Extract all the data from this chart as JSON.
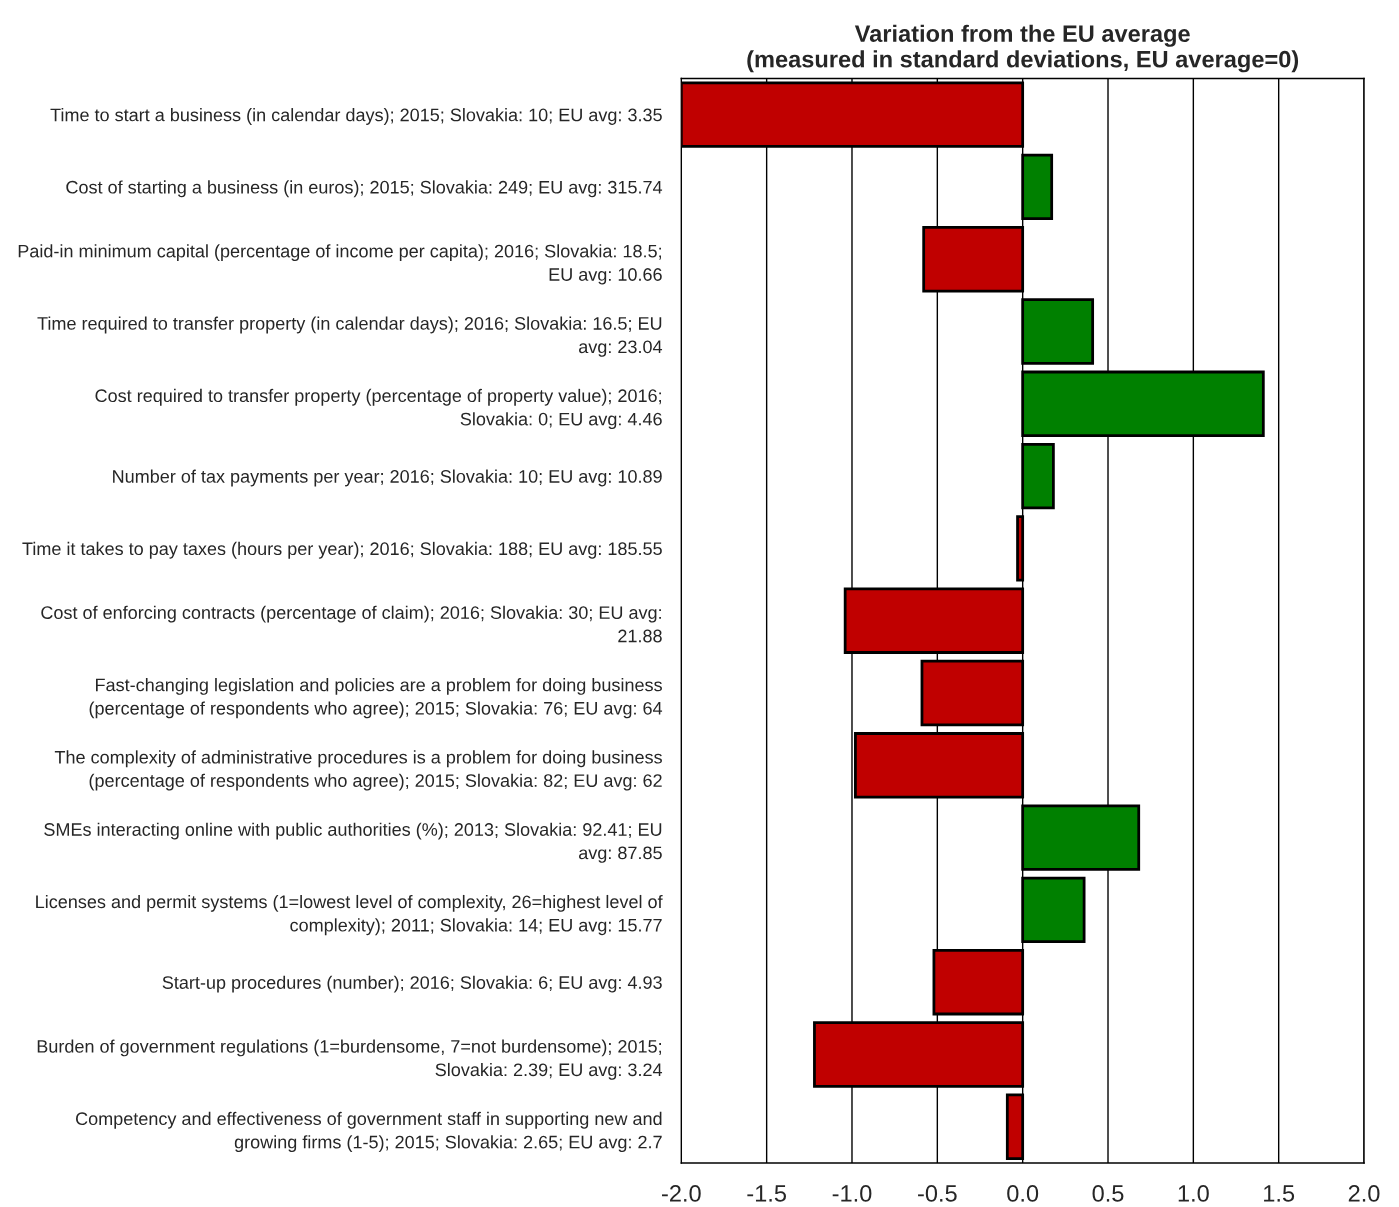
{
  "chart_data": {
    "type": "bar",
    "orientation": "horizontal",
    "title": "Variation from the EU average\n(measured in standard deviations, EU average=0)",
    "categories": [
      "Time to start a business (in calendar days); 2015; Slovakia: 10; EU avg: 3.35",
      "Cost of starting a business (in euros); 2015; Slovakia: 249; EU avg: 315.74",
      "Paid-in minimum capital (percentage of income per capita); 2016; Slovakia: 18.5;\nEU avg: 10.66",
      "Time required to transfer property (in calendar days); 2016; Slovakia: 16.5; EU\navg: 23.04",
      "Cost required to transfer property (percentage of property value); 2016;\nSlovakia: 0; EU avg: 4.46",
      "Number of tax payments per year; 2016; Slovakia: 10; EU avg: 10.89",
      "Time it takes to pay taxes (hours per year); 2016; Slovakia: 188; EU avg: 185.55",
      "Cost of enforcing contracts (percentage of claim); 2016; Slovakia: 30; EU avg:\n21.88",
      "Fast-changing legislation and policies are a problem for doing business\n(percentage of respondents who agree); 2015; Slovakia: 76; EU avg: 64",
      "The complexity of administrative procedures is a problem for doing business\n(percentage of respondents who agree); 2015; Slovakia: 82; EU avg: 62",
      "SMEs interacting online with public authorities (%); 2013; Slovakia: 92.41; EU\navg: 87.85",
      "Licenses and permit systems (1=lowest level of complexity, 26=highest level of\ncomplexity); 2011; Slovakia: 14; EU avg: 15.77",
      "Start-up procedures (number); 2016; Slovakia: 6; EU avg: 4.93",
      "Burden of government regulations (1=burdensome, 7=not burdensome); 2015;\nSlovakia: 2.39; EU avg: 3.24",
      "Competency and effectiveness of government staff in supporting new and\ngrowing firms (1-5); 2015; Slovakia: 2.65; EU avg: 2.7"
    ],
    "values": [
      -2.0,
      0.17,
      -0.58,
      0.41,
      1.41,
      0.18,
      -0.03,
      -1.04,
      -0.59,
      -0.98,
      0.68,
      0.36,
      -0.52,
      -1.22,
      -0.09
    ],
    "colors": [
      "#c00000",
      "#008000",
      "#c00000",
      "#008000",
      "#008000",
      "#008000",
      "#c00000",
      "#c00000",
      "#c00000",
      "#c00000",
      "#008000",
      "#008000",
      "#c00000",
      "#c00000",
      "#c00000"
    ],
    "xlim": [
      -2.0,
      2.0
    ],
    "xticks": [
      {
        "value": -2.0,
        "label": "-2.0"
      },
      {
        "value": -1.5,
        "label": "-1.5"
      },
      {
        "value": -1.0,
        "label": "-1.0"
      },
      {
        "value": -0.5,
        "label": "-0.5"
      },
      {
        "value": 0.0,
        "label": "0.0"
      },
      {
        "value": 0.5,
        "label": "0.5"
      },
      {
        "value": 1.0,
        "label": "1.0"
      },
      {
        "value": 1.5,
        "label": "1.5"
      },
      {
        "value": 2.0,
        "label": "2.0"
      }
    ],
    "grid": "x"
  }
}
